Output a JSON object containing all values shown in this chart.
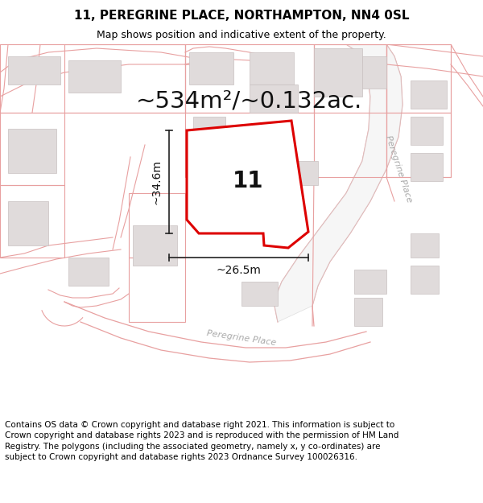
{
  "title_line1": "11, PEREGRINE PLACE, NORTHAMPTON, NN4 0SL",
  "title_line2": "Map shows position and indicative extent of the property.",
  "area_text": "~534m²/~0.132ac.",
  "dim_vertical": "~34.6m",
  "dim_horizontal": "~26.5m",
  "property_number": "11",
  "footer_text": "Contains OS data © Crown copyright and database right 2021. This information is subject to Crown copyright and database rights 2023 and is reproduced with the permission of HM Land Registry. The polygons (including the associated geometry, namely x, y co-ordinates) are subject to Crown copyright and database rights 2023 Ordnance Survey 100026316.",
  "bg_color": "#ffffff",
  "map_bg": "#ffffff",
  "road_color": "#f0b8b8",
  "road_edge_color": "#e8a0a0",
  "building_fill": "#e0dbdb",
  "building_edge": "#c8c0c0",
  "plot_line_color": "#c8c0c0",
  "property_line_color": "#dd0000",
  "dim_line_color": "#222222",
  "title_fontsize": 11,
  "subtitle_fontsize": 9,
  "area_fontsize": 21,
  "dim_fontsize": 10,
  "property_num_fontsize": 20,
  "footer_fontsize": 7.5
}
